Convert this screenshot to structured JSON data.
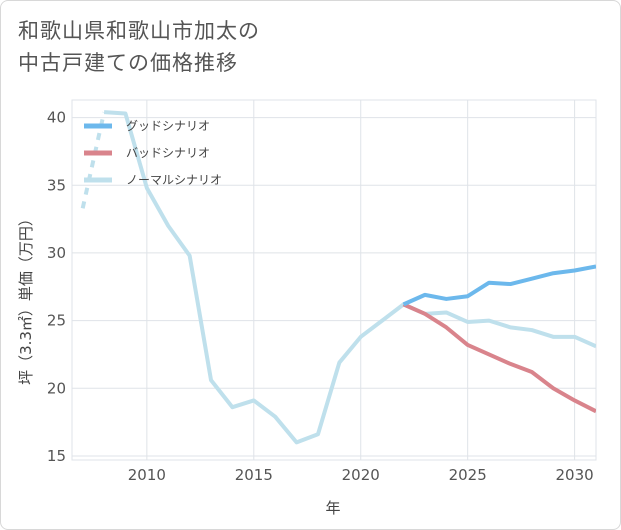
{
  "title_lines": [
    "和歌山県和歌山市加太の",
    "中古戸建ての価格推移"
  ],
  "chart_data": {
    "type": "line",
    "title": "和歌山県和歌山市加太の中古戸建ての価格推移",
    "xlabel": "年",
    "ylabel": "坪（3.3㎡）単価（万円）",
    "xlim": [
      2006.5,
      2031
    ],
    "ylim": [
      14.7,
      41.3
    ],
    "xticks": [
      2010,
      2015,
      2020,
      2025,
      2030
    ],
    "yticks": [
      15,
      20,
      25,
      30,
      35,
      40
    ],
    "grid": true,
    "legend_position": "top-left",
    "series": [
      {
        "name": "グッドシナリオ",
        "color": "#6cb8ec",
        "x": [
          2022,
          2023,
          2024,
          2025,
          2026,
          2027,
          2028,
          2029,
          2030,
          2031
        ],
        "y": [
          26.2,
          26.9,
          26.6,
          26.8,
          27.8,
          27.7,
          28.1,
          28.5,
          28.7,
          29.0
        ]
      },
      {
        "name": "バッドシナリオ",
        "color": "#d9848c",
        "x": [
          2022,
          2023,
          2024,
          2025,
          2026,
          2027,
          2028,
          2029,
          2030,
          2031
        ],
        "y": [
          26.2,
          25.5,
          24.5,
          23.2,
          22.5,
          21.8,
          21.2,
          20.0,
          19.1,
          18.3
        ]
      },
      {
        "name": "ノーマルシナリオ",
        "color": "#bfe0ec",
        "x": [
          2007,
          2008,
          2009,
          2010,
          2011,
          2012,
          2013,
          2014,
          2015,
          2016,
          2017,
          2018,
          2019,
          2020,
          2021,
          2022,
          2023,
          2024,
          2025,
          2026,
          2027,
          2028,
          2029,
          2030,
          2031
        ],
        "y": [
          33.3,
          40.4,
          40.3,
          34.8,
          32.0,
          29.8,
          20.6,
          18.6,
          19.1,
          17.9,
          16.0,
          16.6,
          21.9,
          23.8,
          25.0,
          26.2,
          25.5,
          25.6,
          24.9,
          25.0,
          24.5,
          24.3,
          23.8,
          23.8,
          23.1
        ]
      }
    ]
  }
}
